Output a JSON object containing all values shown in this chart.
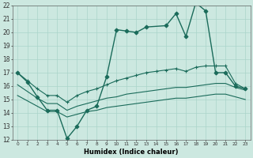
{
  "xlabel": "Humidex (Indice chaleur)",
  "bg_color": "#cce8e0",
  "grid_color": "#aad4ca",
  "line_color": "#1a6b5a",
  "xlim": [
    -0.5,
    23.5
  ],
  "ylim": [
    12,
    22
  ],
  "xticks": [
    0,
    1,
    2,
    3,
    4,
    5,
    6,
    7,
    8,
    9,
    10,
    11,
    12,
    13,
    14,
    15,
    16,
    17,
    18,
    19,
    20,
    21,
    22,
    23
  ],
  "yticks": [
    12,
    13,
    14,
    15,
    16,
    17,
    18,
    19,
    20,
    21,
    22
  ],
  "series": [
    {
      "x": [
        0,
        1,
        2,
        3,
        4,
        5,
        6,
        7,
        8,
        9,
        10,
        11,
        12,
        13,
        15,
        16,
        17,
        18,
        19,
        20,
        21,
        22,
        23
      ],
      "y": [
        17.0,
        16.3,
        15.2,
        14.2,
        14.2,
        12.1,
        13.0,
        14.2,
        14.5,
        16.7,
        20.2,
        20.1,
        20.0,
        20.4,
        20.5,
        21.4,
        19.7,
        22.2,
        21.6,
        17.0,
        17.0,
        16.0,
        15.8
      ],
      "marker": "D",
      "markersize": 2.5,
      "linewidth": 1.0
    },
    {
      "x": [
        0,
        1,
        2,
        3,
        4,
        5,
        6,
        7,
        8,
        9,
        10,
        11,
        12,
        13,
        14,
        15,
        16,
        17,
        18,
        19,
        20,
        21,
        22,
        23
      ],
      "y": [
        17.0,
        16.4,
        15.8,
        15.3,
        15.3,
        14.8,
        15.3,
        15.6,
        15.8,
        16.1,
        16.4,
        16.6,
        16.8,
        17.0,
        17.1,
        17.2,
        17.3,
        17.1,
        17.4,
        17.5,
        17.5,
        17.5,
        16.2,
        15.8
      ],
      "marker": "+",
      "markersize": 3.5,
      "linewidth": 0.8
    },
    {
      "x": [
        0,
        1,
        2,
        3,
        4,
        5,
        6,
        7,
        8,
        9,
        10,
        11,
        12,
        13,
        14,
        15,
        16,
        17,
        18,
        19,
        20,
        21,
        22,
        23
      ],
      "y": [
        16.1,
        15.6,
        15.1,
        14.7,
        14.7,
        14.2,
        14.5,
        14.7,
        14.9,
        15.1,
        15.2,
        15.4,
        15.5,
        15.6,
        15.7,
        15.8,
        15.9,
        15.9,
        16.0,
        16.1,
        16.2,
        16.2,
        15.9,
        15.7
      ],
      "marker": "",
      "markersize": 0,
      "linewidth": 0.8
    },
    {
      "x": [
        0,
        1,
        2,
        3,
        4,
        5,
        6,
        7,
        8,
        9,
        10,
        11,
        12,
        13,
        14,
        15,
        16,
        17,
        18,
        19,
        20,
        21,
        22,
        23
      ],
      "y": [
        15.3,
        14.9,
        14.5,
        14.1,
        14.1,
        13.7,
        13.9,
        14.1,
        14.2,
        14.4,
        14.5,
        14.6,
        14.7,
        14.8,
        14.9,
        15.0,
        15.1,
        15.1,
        15.2,
        15.3,
        15.4,
        15.4,
        15.2,
        15.0
      ],
      "marker": "",
      "markersize": 0,
      "linewidth": 0.8
    }
  ]
}
